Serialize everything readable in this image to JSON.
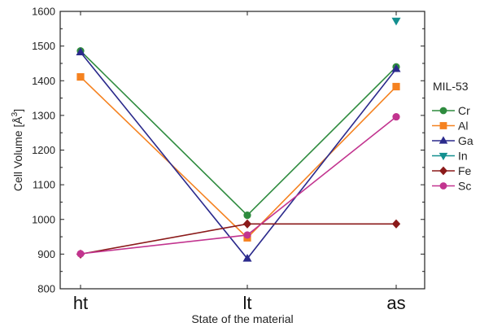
{
  "chart_data": {
    "type": "line",
    "categories": [
      "ht",
      "lt",
      "as"
    ],
    "xlabel": "State of the material",
    "ylabel": "Cell Volume [Å",
    "ylabel_sup": "3",
    "ylabel_close": "]",
    "ylim": [
      800,
      1600
    ],
    "yticks": [
      800,
      900,
      1000,
      1100,
      1200,
      1300,
      1400,
      1500,
      1600
    ],
    "legend_title": "MIL-53",
    "legend_position": "right",
    "grid": false,
    "series": [
      {
        "name": "Cr",
        "color": "#2e8b3e",
        "marker": "circle",
        "values": [
          1486,
          1012,
          1440
        ]
      },
      {
        "name": "Al",
        "color": "#f58220",
        "marker": "square",
        "values": [
          1411,
          947,
          1383
        ]
      },
      {
        "name": "Ga",
        "color": "#2b2a8c",
        "marker": "triangle-up",
        "values": [
          1482,
          887,
          1434
        ]
      },
      {
        "name": "In",
        "color": "#138f8f",
        "marker": "triangle-down",
        "values": [
          null,
          null,
          1573
        ]
      },
      {
        "name": "Fe",
        "color": "#8b1a1a",
        "marker": "diamond",
        "values": [
          900,
          987,
          987
        ]
      },
      {
        "name": "Sc",
        "color": "#c2348f",
        "marker": "circle",
        "values": [
          901,
          955,
          1296
        ]
      }
    ]
  }
}
